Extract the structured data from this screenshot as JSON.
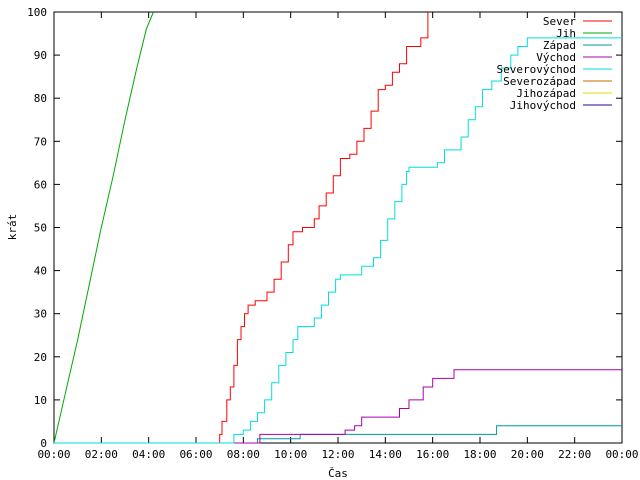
{
  "chart_data": {
    "type": "line",
    "title": "",
    "xlabel": "Čas",
    "ylabel": "krát",
    "x_unit": "hours (HH:MM)",
    "xlim": [
      0,
      24
    ],
    "ylim": [
      0,
      100
    ],
    "x_ticks": [
      "00:00",
      "02:00",
      "04:00",
      "06:00",
      "08:00",
      "10:00",
      "12:00",
      "14:00",
      "16:00",
      "18:00",
      "20:00",
      "22:00",
      "00:00"
    ],
    "y_ticks": [
      0,
      10,
      20,
      30,
      40,
      50,
      60,
      70,
      80,
      90,
      100
    ],
    "grid": false,
    "legend_position": "top-right",
    "series": [
      {
        "name": "Sever",
        "color": "#ff0000",
        "step": true,
        "points": [
          [
            0,
            0
          ],
          [
            6.93,
            0
          ],
          [
            7.0,
            2
          ],
          [
            7.1,
            5
          ],
          [
            7.3,
            10
          ],
          [
            7.45,
            13
          ],
          [
            7.6,
            18
          ],
          [
            7.75,
            24
          ],
          [
            7.9,
            27
          ],
          [
            8.05,
            30
          ],
          [
            8.2,
            32
          ],
          [
            8.5,
            33
          ],
          [
            9.0,
            35
          ],
          [
            9.3,
            38
          ],
          [
            9.6,
            42
          ],
          [
            9.9,
            46
          ],
          [
            10.1,
            49
          ],
          [
            10.5,
            50
          ],
          [
            11.0,
            52
          ],
          [
            11.2,
            55
          ],
          [
            11.5,
            58
          ],
          [
            11.8,
            62
          ],
          [
            12.1,
            66
          ],
          [
            12.5,
            67
          ],
          [
            12.8,
            70
          ],
          [
            13.1,
            73
          ],
          [
            13.4,
            77
          ],
          [
            13.7,
            82
          ],
          [
            14.0,
            83
          ],
          [
            14.3,
            86
          ],
          [
            14.6,
            88
          ],
          [
            14.9,
            92
          ],
          [
            15.5,
            94
          ],
          [
            15.8,
            100
          ]
        ]
      },
      {
        "name": "Jih",
        "color": "#00aa00",
        "step": false,
        "points": [
          [
            0,
            0
          ],
          [
            0.5,
            12
          ],
          [
            1.0,
            24
          ],
          [
            1.5,
            37
          ],
          [
            2.0,
            50
          ],
          [
            2.5,
            62
          ],
          [
            3.0,
            75
          ],
          [
            3.5,
            87
          ],
          [
            3.9,
            96
          ],
          [
            4.2,
            100
          ]
        ]
      },
      {
        "name": "Západ",
        "color": "#009999",
        "step": true,
        "points": [
          [
            0,
            0
          ],
          [
            8.6,
            0
          ],
          [
            8.6,
            1
          ],
          [
            10.4,
            1
          ],
          [
            10.4,
            2
          ],
          [
            18.7,
            2
          ],
          [
            18.7,
            4
          ],
          [
            24,
            4
          ]
        ]
      },
      {
        "name": "Východ",
        "color": "#aa00aa",
        "step": true,
        "points": [
          [
            0,
            0
          ],
          [
            8.7,
            0
          ],
          [
            8.7,
            2
          ],
          [
            12.3,
            2
          ],
          [
            12.3,
            3
          ],
          [
            12.7,
            3
          ],
          [
            12.7,
            4
          ],
          [
            13.0,
            4
          ],
          [
            13.0,
            6
          ],
          [
            14.6,
            6
          ],
          [
            14.6,
            8
          ],
          [
            15.0,
            8
          ],
          [
            15.0,
            10
          ],
          [
            15.6,
            10
          ],
          [
            15.6,
            13
          ],
          [
            16.0,
            13
          ],
          [
            16.0,
            15
          ],
          [
            16.9,
            15
          ],
          [
            16.9,
            17
          ],
          [
            24,
            17
          ]
        ]
      },
      {
        "name": "Severovýchod",
        "color": "#00dddd",
        "step": true,
        "points": [
          [
            0,
            0
          ],
          [
            7.6,
            0
          ],
          [
            7.6,
            2
          ],
          [
            8.0,
            3
          ],
          [
            8.3,
            5
          ],
          [
            8.6,
            7
          ],
          [
            8.9,
            10
          ],
          [
            9.2,
            14
          ],
          [
            9.5,
            18
          ],
          [
            9.8,
            21
          ],
          [
            10.1,
            24
          ],
          [
            10.3,
            27
          ],
          [
            11.0,
            29
          ],
          [
            11.3,
            32
          ],
          [
            11.6,
            35
          ],
          [
            11.9,
            38
          ],
          [
            12.1,
            39
          ],
          [
            13.0,
            41
          ],
          [
            13.5,
            43
          ],
          [
            13.8,
            47
          ],
          [
            14.1,
            52
          ],
          [
            14.4,
            56
          ],
          [
            14.7,
            60
          ],
          [
            14.9,
            63
          ],
          [
            15.0,
            64
          ],
          [
            16.2,
            65
          ],
          [
            16.5,
            68
          ],
          [
            17.2,
            71
          ],
          [
            17.5,
            75
          ],
          [
            17.8,
            78
          ],
          [
            18.1,
            82
          ],
          [
            18.5,
            84
          ],
          [
            18.9,
            87
          ],
          [
            19.3,
            90
          ],
          [
            19.6,
            92
          ],
          [
            20.0,
            94
          ],
          [
            24,
            94
          ]
        ]
      },
      {
        "name": "Severozápad",
        "color": "#cc6600",
        "step": true,
        "points": []
      },
      {
        "name": "Jihozápad",
        "color": "#dddd00",
        "step": true,
        "points": []
      },
      {
        "name": "Jihovýchod",
        "color": "#330099",
        "step": true,
        "points": []
      }
    ]
  }
}
